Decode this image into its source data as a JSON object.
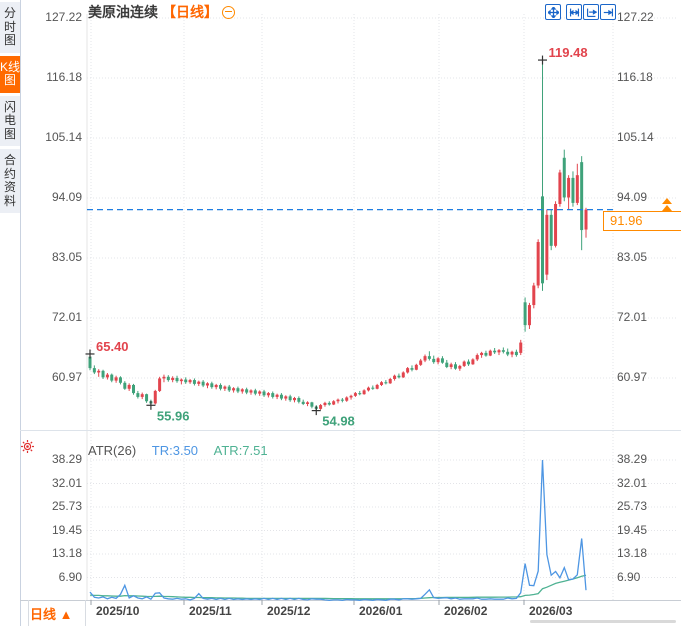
{
  "sidebar": {
    "items": [
      {
        "label": "分时图",
        "active": false
      },
      {
        "label": "K线图",
        "active": true
      },
      {
        "label": "闪电图",
        "active": false
      },
      {
        "label": "合约资料",
        "active": false
      }
    ]
  },
  "header": {
    "symbol": "美原油连续",
    "period_tag": "【日线】"
  },
  "footer": {
    "period_label": "日线",
    "period_arrow": "▲"
  },
  "indicator": {
    "name": "ATR(26)",
    "tr_label": "TR:3.50",
    "atr_label": "ATR:7.51"
  },
  "colors": {
    "up": "#e2444d",
    "down": "#3fa27a",
    "tr_line": "#4e96e3",
    "atr_line": "#4fb293",
    "accent": "#ff6600",
    "badge": "#ff8a00",
    "current_line": "#1f7de0",
    "toolbar_icon": "#1b66c9",
    "annotation_red": "#e2444d",
    "annotation_green": "#3fa27a",
    "grid": "#e3e4e8",
    "marker": "#333333",
    "settings_icon": "#e03131"
  },
  "chart_data": [
    {
      "type": "candlestick",
      "symbol": "美原油连续",
      "period": "日线",
      "y_ticks": [
        "127.22",
        "116.18",
        "105.14",
        "94.09",
        "83.05",
        "72.01",
        "60.97"
      ],
      "x_ticks": [
        "2025/10",
        "2025/11",
        "2025/12",
        "2026/01",
        "2026/02",
        "2026/03"
      ],
      "current_price": "91.96",
      "current_price_value": 91.96,
      "annotations": [
        {
          "label": "65.40",
          "index": 0,
          "at": "high",
          "color": "red"
        },
        {
          "label": "55.96",
          "index": 14,
          "at": "low",
          "color": "green"
        },
        {
          "label": "54.98",
          "index": 52,
          "at": "low",
          "color": "green"
        },
        {
          "label": "119.48",
          "index": 104,
          "at": "high",
          "color": "red"
        }
      ],
      "candles": [
        [
          64.9,
          65.4,
          62.4,
          62.8
        ],
        [
          62.8,
          63.3,
          61.7,
          62.0
        ],
        [
          62.0,
          62.6,
          61.2,
          62.3
        ],
        [
          62.3,
          62.5,
          60.8,
          61.1
        ],
        [
          61.1,
          61.9,
          60.7,
          61.6
        ],
        [
          61.6,
          61.8,
          60.2,
          60.5
        ],
        [
          60.5,
          61.4,
          60.1,
          61.1
        ],
        [
          61.1,
          61.3,
          59.8,
          60.1
        ],
        [
          60.1,
          60.4,
          58.8,
          59.0
        ],
        [
          59.0,
          60.0,
          58.6,
          59.7
        ],
        [
          59.7,
          59.9,
          57.9,
          58.2
        ],
        [
          58.2,
          58.6,
          57.2,
          57.5
        ],
        [
          57.5,
          58.3,
          57.1,
          58.0
        ],
        [
          58.0,
          58.1,
          56.4,
          56.7
        ],
        [
          56.7,
          57.0,
          55.96,
          56.3
        ],
        [
          56.3,
          58.8,
          56.1,
          58.6
        ],
        [
          58.6,
          61.2,
          58.4,
          60.9
        ],
        [
          60.9,
          61.6,
          60.2,
          61.2
        ],
        [
          61.2,
          61.5,
          60.3,
          60.6
        ],
        [
          60.6,
          61.3,
          60.2,
          61.0
        ],
        [
          61.0,
          61.4,
          60.1,
          60.4
        ],
        [
          60.4,
          60.9,
          59.8,
          60.7
        ],
        [
          60.7,
          61.1,
          59.9,
          60.2
        ],
        [
          60.2,
          60.8,
          59.9,
          60.6
        ],
        [
          60.6,
          60.9,
          59.6,
          59.9
        ],
        [
          59.9,
          60.5,
          59.5,
          60.3
        ],
        [
          60.3,
          60.6,
          59.3,
          59.6
        ],
        [
          59.6,
          60.2,
          59.1,
          60.0
        ],
        [
          60.0,
          60.3,
          59.0,
          59.3
        ],
        [
          59.3,
          59.9,
          58.9,
          59.7
        ],
        [
          59.7,
          60.0,
          58.7,
          59.0
        ],
        [
          59.0,
          59.6,
          58.6,
          59.4
        ],
        [
          59.4,
          59.7,
          58.4,
          58.7
        ],
        [
          58.7,
          59.3,
          58.3,
          59.1
        ],
        [
          59.1,
          59.4,
          58.2,
          58.5
        ],
        [
          58.5,
          59.1,
          58.1,
          58.9
        ],
        [
          58.9,
          59.2,
          58.0,
          58.3
        ],
        [
          58.3,
          58.9,
          57.9,
          58.7
        ],
        [
          58.7,
          59.0,
          57.8,
          58.1
        ],
        [
          58.1,
          58.7,
          57.7,
          58.5
        ],
        [
          58.5,
          58.8,
          57.5,
          57.8
        ],
        [
          57.8,
          58.4,
          57.4,
          58.2
        ],
        [
          58.2,
          58.5,
          57.2,
          57.5
        ],
        [
          57.5,
          58.1,
          57.1,
          57.9
        ],
        [
          57.9,
          58.2,
          56.9,
          57.2
        ],
        [
          57.2,
          57.8,
          56.8,
          57.6
        ],
        [
          57.6,
          57.9,
          56.6,
          56.9
        ],
        [
          56.9,
          57.5,
          56.5,
          57.3
        ],
        [
          57.3,
          57.6,
          56.3,
          56.6
        ],
        [
          56.6,
          57.0,
          56.0,
          56.2
        ],
        [
          56.2,
          56.7,
          55.8,
          56.5
        ],
        [
          56.5,
          56.6,
          55.4,
          55.7
        ],
        [
          55.7,
          56.0,
          54.98,
          55.3
        ],
        [
          55.3,
          56.2,
          55.1,
          56.0
        ],
        [
          56.0,
          56.6,
          55.7,
          56.4
        ],
        [
          56.4,
          56.7,
          55.9,
          56.1
        ],
        [
          56.1,
          56.9,
          56.0,
          56.7
        ],
        [
          56.7,
          57.2,
          56.3,
          57.0
        ],
        [
          57.0,
          57.3,
          56.5,
          56.8
        ],
        [
          56.8,
          57.6,
          56.6,
          57.4
        ],
        [
          57.4,
          57.9,
          57.0,
          57.7
        ],
        [
          57.7,
          58.4,
          57.5,
          58.2
        ],
        [
          58.2,
          58.6,
          57.8,
          58.0
        ],
        [
          58.0,
          58.9,
          57.9,
          58.7
        ],
        [
          58.7,
          59.4,
          58.5,
          59.2
        ],
        [
          59.2,
          59.6,
          58.8,
          59.0
        ],
        [
          59.0,
          59.9,
          58.9,
          59.7
        ],
        [
          59.7,
          60.4,
          59.5,
          60.2
        ],
        [
          60.2,
          60.6,
          59.8,
          60.0
        ],
        [
          60.0,
          61.0,
          59.9,
          60.8
        ],
        [
          60.8,
          61.6,
          60.5,
          61.4
        ],
        [
          61.4,
          61.8,
          60.9,
          61.1
        ],
        [
          61.1,
          62.2,
          61.0,
          62.0
        ],
        [
          62.0,
          63.0,
          61.8,
          62.8
        ],
        [
          62.8,
          63.3,
          62.2,
          62.5
        ],
        [
          62.5,
          63.6,
          62.4,
          63.4
        ],
        [
          63.4,
          64.5,
          63.2,
          64.2
        ],
        [
          64.2,
          65.3,
          63.9,
          65.0
        ],
        [
          65.0,
          65.9,
          64.2,
          64.5
        ],
        [
          64.5,
          65.1,
          63.6,
          63.9
        ],
        [
          63.9,
          64.8,
          63.5,
          64.6
        ],
        [
          64.6,
          65.0,
          63.6,
          63.8
        ],
        [
          63.8,
          64.3,
          62.8,
          63.0
        ],
        [
          63.0,
          63.8,
          62.6,
          63.5
        ],
        [
          63.5,
          63.9,
          62.5,
          62.7
        ],
        [
          62.7,
          63.4,
          62.3,
          63.2
        ],
        [
          63.2,
          64.2,
          63.0,
          64.0
        ],
        [
          64.0,
          64.4,
          63.2,
          63.5
        ],
        [
          63.5,
          64.6,
          63.4,
          64.4
        ],
        [
          64.4,
          65.5,
          64.1,
          65.2
        ],
        [
          65.2,
          65.8,
          64.7,
          65.6
        ],
        [
          65.6,
          66.0,
          64.9,
          65.1
        ],
        [
          65.1,
          66.2,
          65.0,
          66.0
        ],
        [
          66.0,
          66.5,
          65.4,
          65.7
        ],
        [
          65.7,
          66.3,
          65.2,
          66.1
        ],
        [
          66.1,
          66.6,
          65.5,
          65.8
        ],
        [
          65.8,
          66.4,
          65.0,
          65.3
        ],
        [
          65.3,
          66.0,
          64.8,
          65.8
        ],
        [
          65.8,
          66.2,
          64.9,
          65.2
        ],
        [
          65.6,
          68.0,
          65.2,
          67.5
        ],
        [
          74.9,
          75.8,
          69.5,
          70.7
        ],
        [
          70.7,
          74.8,
          70.0,
          74.4
        ],
        [
          74.4,
          78.5,
          73.8,
          78.0
        ],
        [
          78.0,
          86.5,
          77.5,
          86.0
        ],
        [
          94.4,
          119.48,
          77.0,
          78.4
        ],
        [
          80.0,
          92.0,
          79.0,
          91.0
        ],
        [
          91.0,
          92.0,
          84.5,
          85.3
        ],
        [
          85.3,
          93.5,
          85.0,
          93.0
        ],
        [
          93.0,
          99.3,
          92.5,
          98.8
        ],
        [
          101.5,
          103.0,
          93.5,
          94.2
        ],
        [
          94.2,
          98.3,
          92.0,
          97.8
        ],
        [
          97.8,
          99.0,
          92.5,
          93.2
        ],
        [
          93.2,
          100.4,
          92.8,
          98.3
        ],
        [
          100.7,
          101.8,
          84.5,
          88.2
        ],
        [
          88.3,
          92.3,
          86.8,
          91.96
        ]
      ]
    },
    {
      "type": "line",
      "name": "ATR(26)",
      "y_ticks": [
        "38.29",
        "32.01",
        "25.73",
        "19.45",
        "13.18",
        "6.90"
      ],
      "series": [
        {
          "name": "TR",
          "last_value": 3.5,
          "values": [
            3.0,
            1.6,
            1.4,
            1.7,
            1.2,
            1.6,
            1.3,
            2.4,
            4.8,
            1.4,
            2.0,
            1.4,
            1.2,
            1.7,
            1.1,
            2.7,
            2.8,
            1.4,
            1.2,
            1.1,
            1.3,
            1.1,
            1.2,
            0.9,
            1.3,
            2.6,
            1.3,
            1.1,
            1.3,
            1.0,
            1.3,
            1.0,
            1.3,
            1.0,
            1.2,
            1.0,
            1.2,
            1.0,
            1.2,
            1.0,
            1.3,
            1.0,
            1.3,
            1.0,
            1.3,
            1.0,
            1.3,
            1.0,
            1.3,
            1.0,
            0.9,
            1.2,
            1.1,
            1.1,
            0.9,
            0.8,
            0.9,
            0.9,
            0.8,
            1.0,
            0.9,
            0.9,
            0.8,
            1.0,
            0.9,
            0.8,
            1.0,
            0.9,
            0.8,
            1.1,
            1.1,
            0.9,
            1.2,
            1.2,
            1.1,
            1.2,
            1.3,
            2.4,
            3.6,
            1.5,
            1.3,
            1.4,
            1.5,
            1.2,
            1.4,
            1.1,
            1.2,
            1.2,
            1.2,
            1.4,
            1.1,
            1.1,
            1.2,
            1.1,
            1.1,
            1.1,
            1.4,
            1.2,
            1.3,
            2.8,
            10.6,
            4.8,
            4.7,
            8.6,
            38.29,
            13.0,
            7.5,
            8.5,
            6.8,
            9.5,
            6.3,
            6.5,
            7.6,
            17.3,
            3.5
          ]
        },
        {
          "name": "ATR",
          "last_value": 7.51,
          "values": [
            2.2,
            2.1,
            2.1,
            2.0,
            2.0,
            1.95,
            1.9,
            1.9,
            2.05,
            2.0,
            2.0,
            1.95,
            1.9,
            1.85,
            1.8,
            1.85,
            1.9,
            1.85,
            1.8,
            1.75,
            1.7,
            1.65,
            1.6,
            1.6,
            1.55,
            1.55,
            1.5,
            1.5,
            1.5,
            1.45,
            1.45,
            1.4,
            1.4,
            1.4,
            1.35,
            1.35,
            1.3,
            1.3,
            1.3,
            1.3,
            1.3,
            1.3,
            1.3,
            1.3,
            1.3,
            1.3,
            1.3,
            1.3,
            1.3,
            1.3,
            1.3,
            1.3,
            1.3,
            1.3,
            1.3,
            1.28,
            1.26,
            1.25,
            1.24,
            1.23,
            1.22,
            1.2,
            1.2,
            1.2,
            1.2,
            1.2,
            1.2,
            1.2,
            1.2,
            1.2,
            1.2,
            1.2,
            1.2,
            1.22,
            1.25,
            1.28,
            1.32,
            1.4,
            1.5,
            1.55,
            1.55,
            1.55,
            1.58,
            1.58,
            1.58,
            1.58,
            1.58,
            1.58,
            1.6,
            1.62,
            1.62,
            1.62,
            1.63,
            1.63,
            1.64,
            1.64,
            1.66,
            1.68,
            1.7,
            1.75,
            2.1,
            2.2,
            2.35,
            2.6,
            3.9,
            4.3,
            4.8,
            5.3,
            5.6,
            5.9,
            6.2,
            6.5,
            6.8,
            7.2,
            7.51
          ]
        }
      ]
    }
  ]
}
